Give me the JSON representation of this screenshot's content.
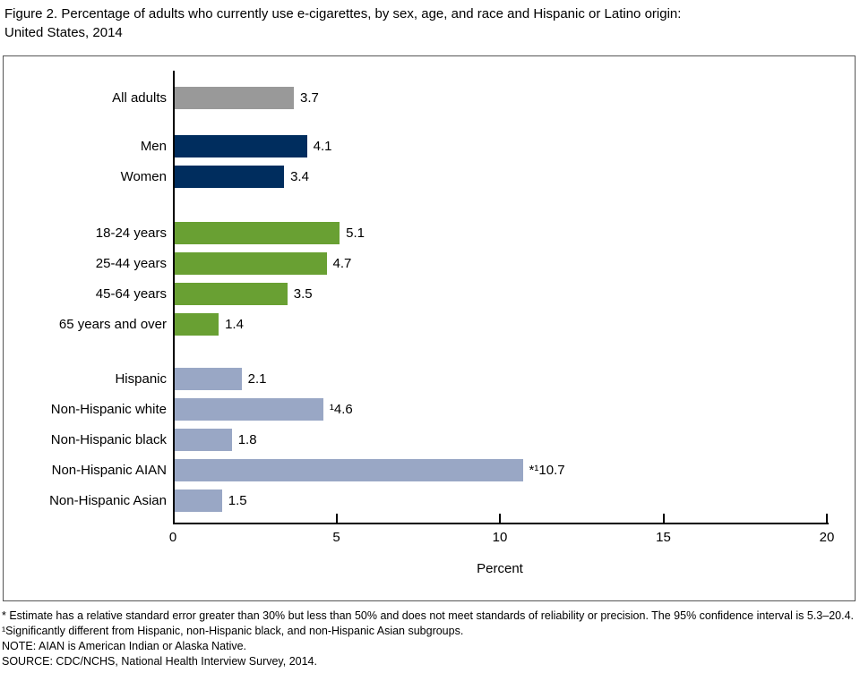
{
  "figure": {
    "title_line1": "Figure 2. Percentage of adults who currently use e-cigarettes, by sex, age, and race and Hispanic or Latino origin:",
    "title_line2": "United States, 2014"
  },
  "chart_data": {
    "type": "bar",
    "orientation": "horizontal",
    "title": "Percentage of adults who currently use e-cigarettes, by sex, age, and race and Hispanic or Latino origin: United States, 2014",
    "xlabel": "Percent",
    "ylabel": "",
    "xlim": [
      0,
      20
    ],
    "xticks": [
      0,
      5,
      10,
      15,
      20
    ],
    "grid": false,
    "legend": false,
    "categories": [
      "All adults",
      "Men",
      "Women",
      "18-24 years",
      "25-44 years",
      "45-64 years",
      "65 years and over",
      "Hispanic",
      "Non-Hispanic white",
      "Non-Hispanic black",
      "Non-Hispanic AIAN",
      "Non-Hispanic Asian"
    ],
    "values": [
      3.7,
      4.1,
      3.4,
      5.1,
      4.7,
      3.5,
      1.4,
      2.1,
      4.6,
      1.8,
      10.7,
      1.5
    ],
    "rows": [
      {
        "label": "All adults",
        "value": 3.7,
        "display": "3.7",
        "group": "overall"
      },
      {
        "label": "Men",
        "value": 4.1,
        "display": "4.1",
        "group": "sex"
      },
      {
        "label": "Women",
        "value": 3.4,
        "display": "3.4",
        "group": "sex"
      },
      {
        "label": "18-24 years",
        "value": 5.1,
        "display": "5.1",
        "group": "age"
      },
      {
        "label": "25-44 years",
        "value": 4.7,
        "display": "4.7",
        "group": "age"
      },
      {
        "label": "45-64 years",
        "value": 3.5,
        "display": "3.5",
        "group": "age"
      },
      {
        "label": "65 years and over",
        "value": 1.4,
        "display": "1.4",
        "group": "age"
      },
      {
        "label": "Hispanic",
        "value": 2.1,
        "display": "2.1",
        "group": "race"
      },
      {
        "label": "Non-Hispanic white",
        "value": 4.6,
        "display": "¹4.6",
        "group": "race"
      },
      {
        "label": "Non-Hispanic black",
        "value": 1.8,
        "display": "1.8",
        "group": "race"
      },
      {
        "label": "Non-Hispanic AIAN",
        "value": 10.7,
        "display": "*¹10.7",
        "group": "race"
      },
      {
        "label": "Non-Hispanic Asian",
        "value": 1.5,
        "display": "1.5",
        "group": "race"
      }
    ],
    "group_colors": {
      "overall": "#999999",
      "sex": "#002d5e",
      "age": "#69a033",
      "race": "#99a7c5"
    },
    "axis_color": "#000000"
  },
  "footnotes": [
    "* Estimate has a relative standard error greater than 30% but less than 50% and does not meet standards of reliability or precision. The 95% confidence interval is 5.3–20.4.",
    "¹Significantly different from Hispanic, non-Hispanic black, and non-Hispanic Asian subgroups.",
    "NOTE: AIAN is American Indian or Alaska Native.",
    "SOURCE: CDC/NCHS, National Health Interview Survey, 2014."
  ]
}
